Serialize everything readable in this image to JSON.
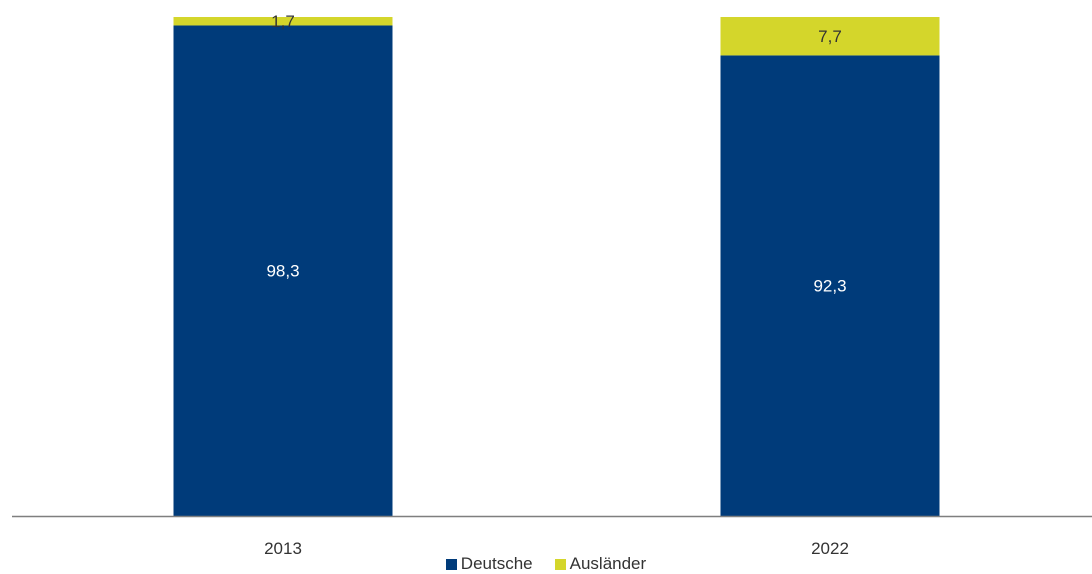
{
  "chart_data": {
    "type": "bar",
    "stacked": true,
    "categories": [
      "2013",
      "2022"
    ],
    "series": [
      {
        "name": "Deutsche",
        "values": [
          98.3,
          92.3
        ],
        "labels": [
          "98,3",
          "92,3"
        ],
        "color": "#003b7a"
      },
      {
        "name": "Ausländer",
        "values": [
          1.7,
          7.7
        ],
        "labels": [
          "1,7",
          "7,7"
        ],
        "color": "#d4d62b"
      }
    ],
    "title": "",
    "xlabel": "",
    "ylabel": "",
    "ylim": [
      0,
      100
    ],
    "grid": false,
    "legend": "bottom-center"
  }
}
